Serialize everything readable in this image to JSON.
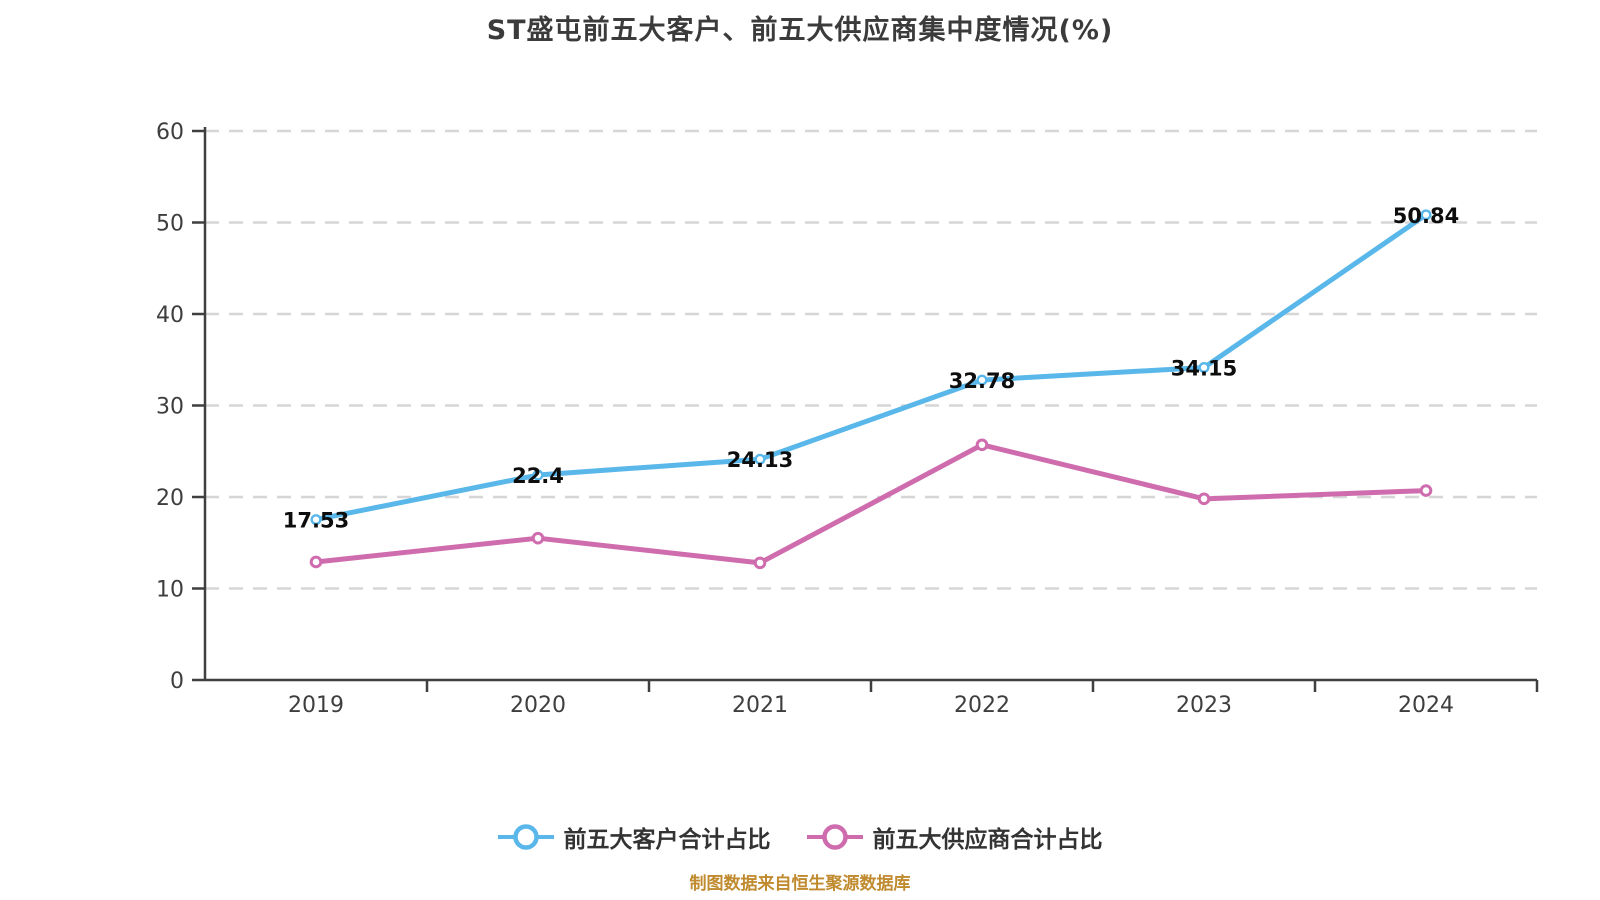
{
  "page": {
    "background": "#FFFFFF"
  },
  "header": {
    "title": "ST盛屯前五大客户、前五大供应商集中度情况(%)"
  },
  "footer": {
    "source_note": "制图数据来自恒生聚源数据库",
    "color": "#C08A2E"
  },
  "chart_data": {
    "type": "line",
    "title": "ST盛屯前五大客户、前五大供应商集中度情况(%)",
    "categories": [
      "2019",
      "2020",
      "2021",
      "2022",
      "2023",
      "2024"
    ],
    "series": [
      {
        "id": "customers",
        "name": "前五大客户合计占比",
        "color": "#5AB7EA",
        "values": [
          17.53,
          22.4,
          24.13,
          32.78,
          34.15,
          50.84
        ],
        "show_labels": true,
        "marker": "circle-white-fill"
      },
      {
        "id": "suppliers",
        "name": "前五大供应商合计占比",
        "color": "#CF6CAE",
        "values": [
          12.9,
          15.5,
          12.8,
          25.7,
          19.8,
          20.7
        ],
        "show_labels": false,
        "marker": "circle-white-fill"
      }
    ],
    "xlabel": "",
    "ylabel": "",
    "ylim": [
      0,
      60
    ],
    "ytick_step": 10,
    "yticks": [
      0,
      10,
      20,
      30,
      40,
      50,
      60
    ],
    "grid": {
      "horizontal": true,
      "style": "dashed",
      "color": "#D6D6D6"
    },
    "axis_color": "#3F3F3F",
    "tick_label_color": "#3E3E3E",
    "data_label_color": "#0D0D0D",
    "legend_position": "bottom"
  }
}
